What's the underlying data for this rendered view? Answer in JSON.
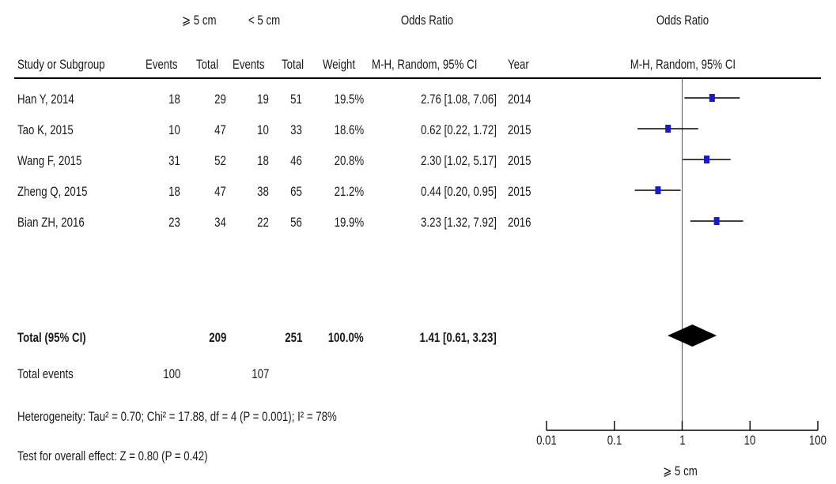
{
  "header": {
    "group1": "⩾ 5 cm",
    "group2": "< 5 cm",
    "or_title_table": "Odds Ratio",
    "or_title_plot": "Odds Ratio",
    "col_study": "Study or Subgroup",
    "col_events1": "Events",
    "col_total1": "Total",
    "col_events2": "Events",
    "col_total2": "Total",
    "col_weight": "Weight",
    "col_or": "M-H, Random, 95% CI",
    "col_year": "Year",
    "col_or_plot": "M-H, Random, 95% CI"
  },
  "studies": [
    {
      "name": "Han Y, 2014",
      "events1": "18",
      "total1": "29",
      "events2": "19",
      "total2": "51",
      "weight": "19.5%",
      "ci_text": "2.76 [1.08, 7.06]",
      "year": "2014"
    },
    {
      "name": "Tao K, 2015",
      "events1": "10",
      "total1": "47",
      "events2": "10",
      "total2": "33",
      "weight": "18.6%",
      "ci_text": "0.62 [0.22, 1.72]",
      "year": "2015"
    },
    {
      "name": "Wang F, 2015",
      "events1": "31",
      "total1": "52",
      "events2": "18",
      "total2": "46",
      "weight": "20.8%",
      "ci_text": "2.30 [1.02, 5.17]",
      "year": "2015"
    },
    {
      "name": "Zheng Q, 2015",
      "events1": "18",
      "total1": "47",
      "events2": "38",
      "total2": "65",
      "weight": "21.2%",
      "ci_text": "0.44 [0.20, 0.95]",
      "year": "2015"
    },
    {
      "name": "Bian ZH, 2016",
      "events1": "23",
      "total1": "34",
      "events2": "22",
      "total2": "56",
      "weight": "19.9%",
      "ci_text": "3.23 [1.32, 7.92]",
      "year": "2016"
    }
  ],
  "total": {
    "label": "Total (95% CI)",
    "total1": "209",
    "total2": "251",
    "weight": "100.0%",
    "ci_text": "1.41 [0.61, 3.23]"
  },
  "total_events": {
    "label": "Total events",
    "events1": "100",
    "events2": "107"
  },
  "heterogeneity": "Heterogeneity: Tau² = 0.70; Chi² = 17.88, df = 4 (P = 0.001); I² = 78%",
  "overall_effect": "Test for overall effect: Z = 0.80 (P = 0.42)",
  "chart_data": {
    "type": "scatter",
    "title": "Odds Ratio",
    "subtitle": "M-H, Random, 95% CI",
    "x_scale": "log",
    "xlim": [
      0.01,
      100
    ],
    "x_ticks": [
      "0.01",
      "0.1",
      "1",
      "10",
      "100"
    ],
    "x_tick_values": [
      0.01,
      0.1,
      1,
      10,
      100
    ],
    "xlabel": "⩾ 5 cm",
    "null_line": 1,
    "marker_color": "#1a1acc",
    "diamond_color": "#000000",
    "points": [
      {
        "study": "Han Y, 2014",
        "or": 2.76,
        "lower": 1.08,
        "upper": 7.06
      },
      {
        "study": "Tao K, 2015",
        "or": 0.62,
        "lower": 0.22,
        "upper": 1.72
      },
      {
        "study": "Wang F, 2015",
        "or": 2.3,
        "lower": 1.02,
        "upper": 5.17
      },
      {
        "study": "Zheng Q, 2015",
        "or": 0.44,
        "lower": 0.2,
        "upper": 0.95
      },
      {
        "study": "Bian ZH, 2016",
        "or": 3.23,
        "lower": 1.32,
        "upper": 7.92
      }
    ],
    "pooled": {
      "or": 1.41,
      "lower": 0.61,
      "upper": 3.23
    }
  }
}
